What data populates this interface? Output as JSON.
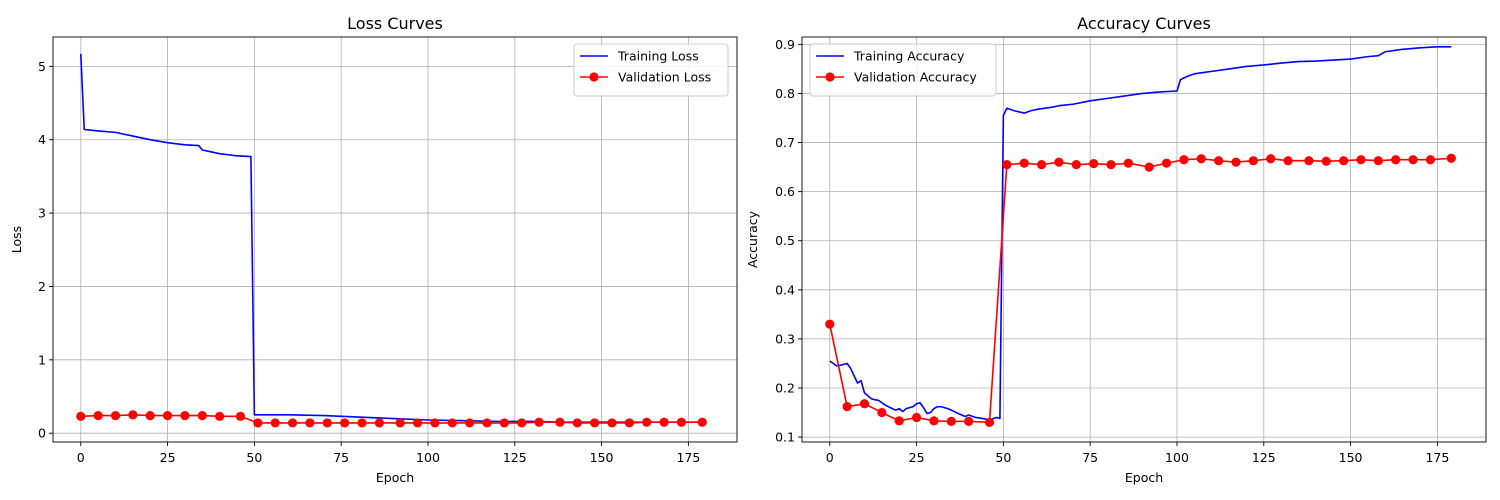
{
  "chart_data": [
    {
      "type": "line",
      "title": "Loss Curves",
      "xlabel": "Epoch",
      "ylabel": "Loss",
      "xlim": [
        -8,
        189
      ],
      "ylim": [
        -0.12,
        5.4
      ],
      "xticks": [
        0,
        25,
        50,
        75,
        100,
        125,
        150,
        175
      ],
      "yticks": [
        0,
        1,
        2,
        3,
        4,
        5
      ],
      "grid": true,
      "legend_placement": "top-right",
      "series": [
        {
          "name": "Training Loss",
          "color": "#0000ff",
          "marker": "none",
          "x": [
            0,
            1,
            5,
            10,
            15,
            20,
            25,
            30,
            34,
            35,
            37,
            40,
            45,
            49,
            50,
            51,
            55,
            60,
            70,
            80,
            90,
            100,
            110,
            120,
            130,
            140,
            150,
            160,
            170,
            179
          ],
          "y": [
            5.17,
            4.14,
            4.12,
            4.1,
            4.05,
            4.0,
            3.96,
            3.93,
            3.92,
            3.86,
            3.84,
            3.81,
            3.78,
            3.77,
            0.25,
            0.25,
            0.25,
            0.25,
            0.24,
            0.22,
            0.2,
            0.18,
            0.17,
            0.16,
            0.16,
            0.15,
            0.15,
            0.15,
            0.15,
            0.15
          ]
        },
        {
          "name": "Validation Loss",
          "color": "#ff0000",
          "marker": "circle",
          "x": [
            0,
            5,
            10,
            15,
            20,
            25,
            30,
            35,
            40,
            46,
            51,
            56,
            61,
            66,
            71,
            76,
            81,
            86,
            92,
            97,
            102,
            107,
            112,
            117,
            122,
            127,
            132,
            138,
            143,
            148,
            153,
            158,
            163,
            168,
            173,
            179
          ],
          "y": [
            0.23,
            0.24,
            0.24,
            0.25,
            0.24,
            0.24,
            0.24,
            0.24,
            0.23,
            0.23,
            0.14,
            0.14,
            0.14,
            0.14,
            0.14,
            0.14,
            0.14,
            0.14,
            0.14,
            0.14,
            0.14,
            0.14,
            0.14,
            0.14,
            0.14,
            0.14,
            0.15,
            0.15,
            0.14,
            0.14,
            0.14,
            0.14,
            0.15,
            0.15,
            0.15,
            0.15
          ]
        }
      ]
    },
    {
      "type": "line",
      "title": "Accuracy Curves",
      "xlabel": "Epoch",
      "ylabel": "Accuracy",
      "xlim": [
        -8,
        189
      ],
      "ylim": [
        0.09,
        0.915
      ],
      "xticks": [
        0,
        25,
        50,
        75,
        100,
        125,
        150,
        175
      ],
      "yticks": [
        0.1,
        0.2,
        0.3,
        0.4,
        0.5,
        0.6,
        0.7,
        0.8,
        0.9
      ],
      "grid": true,
      "legend_placement": "top-left",
      "series": [
        {
          "name": "Training Accuracy",
          "color": "#0000ff",
          "marker": "none",
          "x": [
            0,
            2,
            4,
            5,
            6,
            8,
            9,
            10,
            12,
            13,
            14,
            16,
            18,
            19,
            20,
            21,
            22,
            24,
            25,
            26,
            27,
            28,
            29,
            30,
            31,
            32,
            34,
            35,
            37,
            39,
            40,
            42,
            44,
            46,
            48,
            49,
            50,
            51,
            53,
            56,
            58,
            60,
            64,
            66,
            70,
            75,
            80,
            85,
            90,
            95,
            100,
            101,
            103,
            105,
            108,
            110,
            115,
            120,
            125,
            130,
            135,
            140,
            145,
            150,
            155,
            158,
            160,
            165,
            170,
            175,
            179
          ],
          "y": [
            0.255,
            0.245,
            0.248,
            0.25,
            0.24,
            0.21,
            0.215,
            0.19,
            0.178,
            0.176,
            0.175,
            0.165,
            0.158,
            0.155,
            0.158,
            0.152,
            0.158,
            0.162,
            0.168,
            0.17,
            0.16,
            0.148,
            0.15,
            0.158,
            0.162,
            0.162,
            0.158,
            0.155,
            0.148,
            0.142,
            0.145,
            0.14,
            0.138,
            0.135,
            0.14,
            0.138,
            0.755,
            0.77,
            0.765,
            0.76,
            0.765,
            0.768,
            0.772,
            0.775,
            0.778,
            0.785,
            0.79,
            0.795,
            0.8,
            0.803,
            0.805,
            0.828,
            0.835,
            0.84,
            0.843,
            0.845,
            0.85,
            0.855,
            0.858,
            0.862,
            0.865,
            0.866,
            0.868,
            0.87,
            0.875,
            0.877,
            0.885,
            0.89,
            0.893,
            0.895,
            0.895
          ]
        },
        {
          "name": "Validation Accuracy",
          "color": "#ff0000",
          "marker": "circle",
          "x": [
            0,
            5,
            10,
            15,
            20,
            25,
            30,
            35,
            40,
            46,
            51,
            56,
            61,
            66,
            71,
            76,
            81,
            86,
            92,
            97,
            102,
            107,
            112,
            117,
            122,
            127,
            132,
            138,
            143,
            148,
            153,
            158,
            163,
            168,
            173,
            179
          ],
          "y": [
            0.33,
            0.162,
            0.168,
            0.15,
            0.133,
            0.14,
            0.133,
            0.132,
            0.132,
            0.13,
            0.655,
            0.658,
            0.655,
            0.66,
            0.655,
            0.657,
            0.655,
            0.658,
            0.65,
            0.658,
            0.665,
            0.667,
            0.663,
            0.66,
            0.663,
            0.667,
            0.663,
            0.663,
            0.662,
            0.663,
            0.665,
            0.663,
            0.665,
            0.665,
            0.665,
            0.668
          ]
        }
      ]
    }
  ]
}
